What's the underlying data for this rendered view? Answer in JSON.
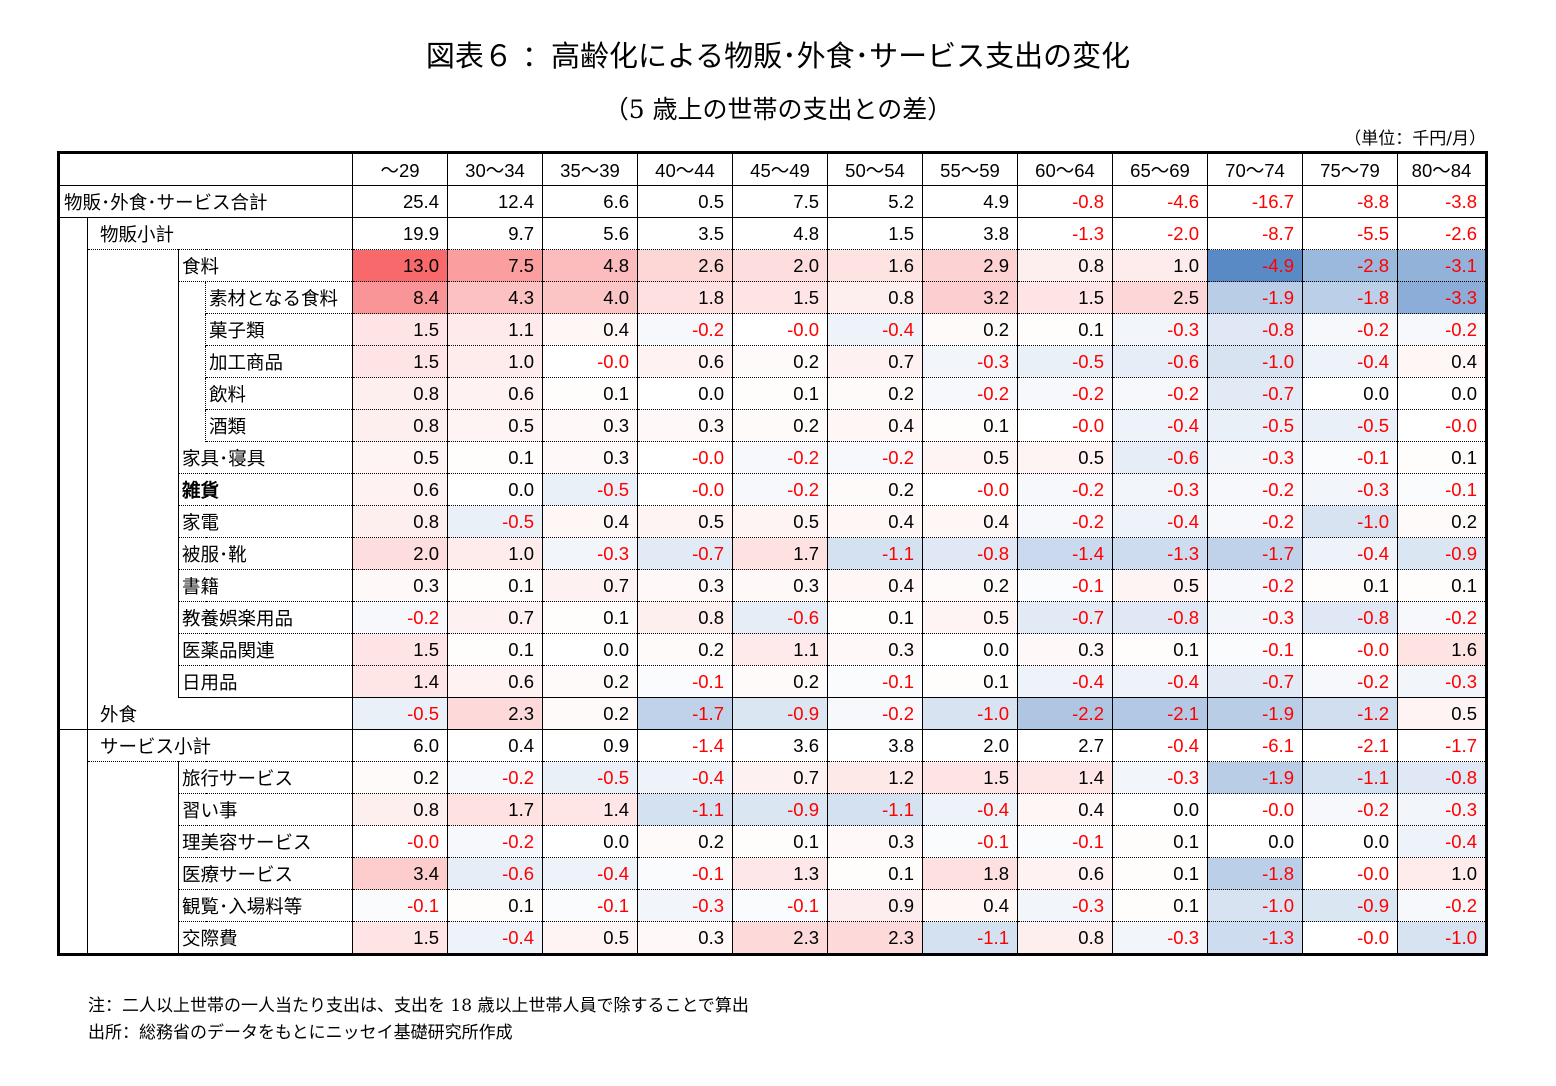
{
  "title": "図表６ ：高齢化による物販･外食･サービス支出の変化",
  "subtitle": "（5 歳上の世帯の支出との差）",
  "unit": "（単位：千円/月）",
  "notes": [
    "注：二人以上世帯の一人当たり支出は、支出を 18 歳以上世帯人員で除することで算出",
    "出所：総務省のデータをもとにニッセイ基礎研究所作成"
  ],
  "chart_data": {
    "type": "table",
    "columns": [
      "～29",
      "30～34",
      "35～39",
      "40～44",
      "45～49",
      "50～54",
      "55～59",
      "60～64",
      "65～69",
      "70～74",
      "75～79",
      "80～84"
    ],
    "rows": [
      {
        "label": "物販･外食･サービス合計",
        "values": [
          "25.4",
          "12.4",
          "6.6",
          "0.5",
          "7.5",
          "5.2",
          "4.9",
          "-0.8",
          "-4.6",
          "-16.7",
          "-8.8",
          "-3.8"
        ],
        "heat": false
      },
      {
        "label": "物販小計",
        "values": [
          "19.9",
          "9.7",
          "5.6",
          "3.5",
          "4.8",
          "1.5",
          "3.8",
          "-1.3",
          "-2.0",
          "-8.7",
          "-5.5",
          "-2.6"
        ],
        "heat": false
      },
      {
        "label": "食料",
        "values": [
          "13.0",
          "7.5",
          "4.8",
          "2.6",
          "2.0",
          "1.6",
          "2.9",
          "0.8",
          "1.0",
          "-4.9",
          "-2.8",
          "-3.1"
        ],
        "heat": true
      },
      {
        "label": "素材となる食料",
        "values": [
          "8.4",
          "4.3",
          "4.0",
          "1.8",
          "1.5",
          "0.8",
          "3.2",
          "1.5",
          "2.5",
          "-1.9",
          "-1.8",
          "-3.3"
        ],
        "heat": true
      },
      {
        "label": "菓子類",
        "values": [
          "1.5",
          "1.1",
          "0.4",
          "-0.2",
          "-0.0",
          "-0.4",
          "0.2",
          "0.1",
          "-0.3",
          "-0.8",
          "-0.2",
          "-0.2"
        ],
        "heat": true
      },
      {
        "label": "加工商品",
        "values": [
          "1.5",
          "1.0",
          "-0.0",
          "0.6",
          "0.2",
          "0.7",
          "-0.3",
          "-0.5",
          "-0.6",
          "-1.0",
          "-0.4",
          "0.4"
        ],
        "heat": true
      },
      {
        "label": "飲料",
        "values": [
          "0.8",
          "0.6",
          "0.1",
          "0.0",
          "0.1",
          "0.2",
          "-0.2",
          "-0.2",
          "-0.2",
          "-0.7",
          "0.0",
          "0.0"
        ],
        "heat": true
      },
      {
        "label": "酒類",
        "values": [
          "0.8",
          "0.5",
          "0.3",
          "0.3",
          "0.2",
          "0.4",
          "0.1",
          "-0.0",
          "-0.4",
          "-0.5",
          "-0.5",
          "-0.0"
        ],
        "heat": true
      },
      {
        "label": "家具･寝具",
        "values": [
          "0.5",
          "0.1",
          "0.3",
          "-0.0",
          "-0.2",
          "-0.2",
          "0.5",
          "0.5",
          "-0.6",
          "-0.3",
          "-0.1",
          "0.1"
        ],
        "heat": true
      },
      {
        "label": "雑貨",
        "values": [
          "0.6",
          "0.0",
          "-0.5",
          "-0.0",
          "-0.2",
          "0.2",
          "-0.0",
          "-0.2",
          "-0.3",
          "-0.2",
          "-0.3",
          "-0.1"
        ],
        "heat": true
      },
      {
        "label": "家電",
        "values": [
          "0.8",
          "-0.5",
          "0.4",
          "0.5",
          "0.5",
          "0.4",
          "0.4",
          "-0.2",
          "-0.4",
          "-0.2",
          "-1.0",
          "0.2"
        ],
        "heat": true
      },
      {
        "label": "被服･靴",
        "values": [
          "2.0",
          "1.0",
          "-0.3",
          "-0.7",
          "1.7",
          "-1.1",
          "-0.8",
          "-1.4",
          "-1.3",
          "-1.7",
          "-0.4",
          "-0.9"
        ],
        "heat": true
      },
      {
        "label": "書籍",
        "values": [
          "0.3",
          "0.1",
          "0.7",
          "0.3",
          "0.3",
          "0.4",
          "0.2",
          "-0.1",
          "0.5",
          "-0.2",
          "0.1",
          "0.1"
        ],
        "heat": true
      },
      {
        "label": "教養娯楽用品",
        "values": [
          "-0.2",
          "0.7",
          "0.1",
          "0.8",
          "-0.6",
          "0.1",
          "0.5",
          "-0.7",
          "-0.8",
          "-0.3",
          "-0.8",
          "-0.2"
        ],
        "heat": true
      },
      {
        "label": "医薬品関連",
        "values": [
          "1.5",
          "0.1",
          "0.0",
          "0.2",
          "1.1",
          "0.3",
          "0.0",
          "0.3",
          "0.1",
          "-0.1",
          "-0.0",
          "1.6"
        ],
        "heat": true
      },
      {
        "label": "日用品",
        "values": [
          "1.4",
          "0.6",
          "0.2",
          "-0.1",
          "0.2",
          "-0.1",
          "0.1",
          "-0.4",
          "-0.4",
          "-0.7",
          "-0.2",
          "-0.3"
        ],
        "heat": true
      },
      {
        "label": "外食",
        "values": [
          "-0.5",
          "2.3",
          "0.2",
          "-1.7",
          "-0.9",
          "-0.2",
          "-1.0",
          "-2.2",
          "-2.1",
          "-1.9",
          "-1.2",
          "0.5"
        ],
        "heat": true
      },
      {
        "label": "サービス小計",
        "values": [
          "6.0",
          "0.4",
          "0.9",
          "-1.4",
          "3.6",
          "3.8",
          "2.0",
          "2.7",
          "-0.4",
          "-6.1",
          "-2.1",
          "-1.7"
        ],
        "heat": false
      },
      {
        "label": "旅行サービス",
        "values": [
          "0.2",
          "-0.2",
          "-0.5",
          "-0.4",
          "0.7",
          "1.2",
          "1.5",
          "1.4",
          "-0.3",
          "-1.9",
          "-1.1",
          "-0.8"
        ],
        "heat": true
      },
      {
        "label": "習い事",
        "values": [
          "0.8",
          "1.7",
          "1.4",
          "-1.1",
          "-0.9",
          "-1.1",
          "-0.4",
          "0.4",
          "0.0",
          "-0.0",
          "-0.2",
          "-0.3"
        ],
        "heat": true
      },
      {
        "label": "理美容サービス",
        "values": [
          "-0.0",
          "-0.2",
          "0.0",
          "0.2",
          "0.1",
          "0.3",
          "-0.1",
          "-0.1",
          "0.1",
          "0.0",
          "0.0",
          "-0.4"
        ],
        "heat": true
      },
      {
        "label": "医療サービス",
        "values": [
          "3.4",
          "-0.6",
          "-0.4",
          "-0.1",
          "1.3",
          "0.1",
          "1.8",
          "0.6",
          "0.1",
          "-1.8",
          "-0.0",
          "1.0"
        ],
        "heat": true
      },
      {
        "label": "観覧･入場料等",
        "values": [
          "-0.1",
          "0.1",
          "-0.1",
          "-0.3",
          "-0.1",
          "0.9",
          "0.4",
          "-0.3",
          "0.1",
          "-1.0",
          "-0.9",
          "-0.2"
        ],
        "heat": true
      },
      {
        "label": "交際費",
        "values": [
          "1.5",
          "-0.4",
          "0.5",
          "0.3",
          "2.3",
          "2.3",
          "-1.1",
          "0.8",
          "-0.3",
          "-1.3",
          "-0.0",
          "-1.0"
        ],
        "heat": true
      }
    ],
    "color_scale": {
      "positive": "#f8696b",
      "negative": "#5a8ac6",
      "zero": "#ffffff"
    }
  }
}
